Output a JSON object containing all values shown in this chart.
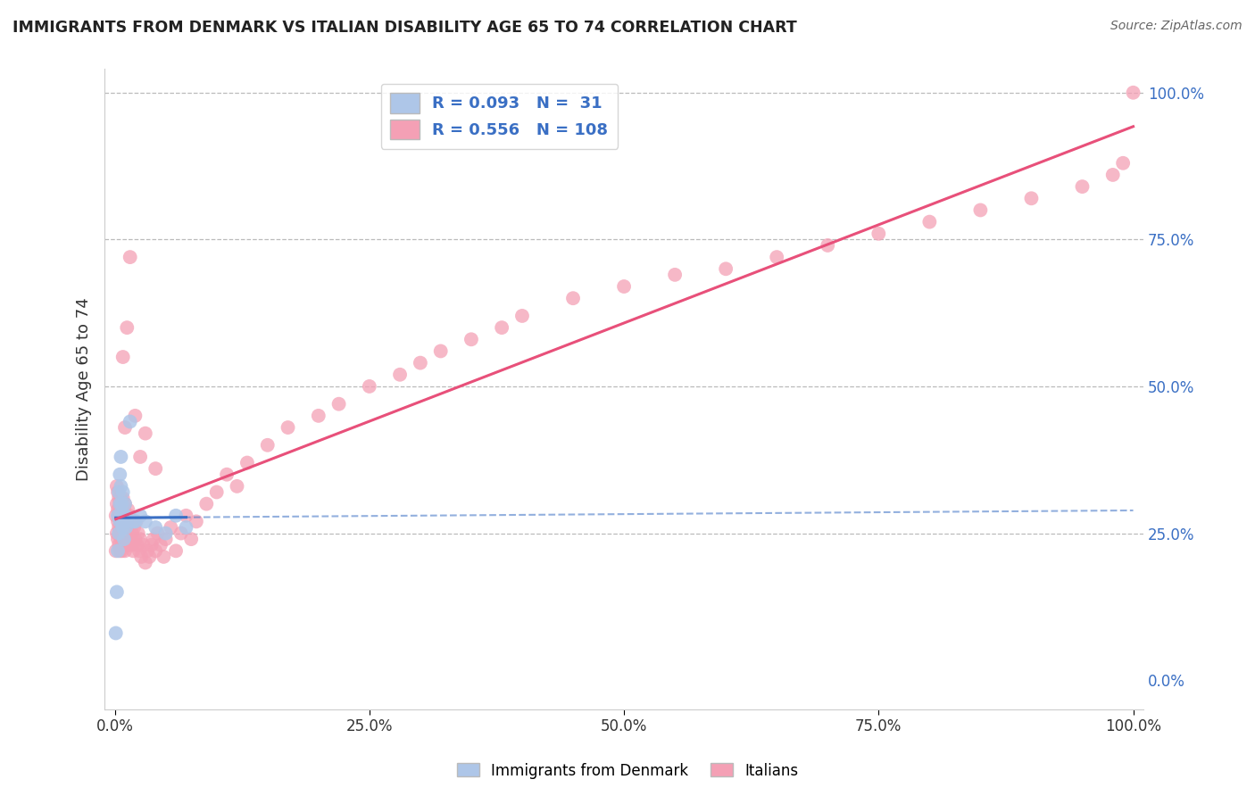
{
  "title": "IMMIGRANTS FROM DENMARK VS ITALIAN DISABILITY AGE 65 TO 74 CORRELATION CHART",
  "source": "Source: ZipAtlas.com",
  "xlabel_bottom": "Immigrants from Denmark",
  "xlabel_italians": "Italians",
  "ylabel": "Disability Age 65 to 74",
  "r_denmark": 0.093,
  "n_denmark": 31,
  "r_italians": 0.556,
  "n_italians": 108,
  "color_denmark": "#aec6e8",
  "color_italians": "#f4a0b5",
  "line_color_denmark": "#3a6fc4",
  "line_color_italians": "#e8507a",
  "dashed_line_color": "#aaaaaa",
  "background_color": "#ffffff",
  "xlim": [
    0.0,
    1.0
  ],
  "ylim": [
    0.0,
    1.0
  ],
  "denmark_x": [
    0.001,
    0.002,
    0.003,
    0.003,
    0.004,
    0.004,
    0.005,
    0.005,
    0.005,
    0.006,
    0.006,
    0.006,
    0.007,
    0.007,
    0.008,
    0.008,
    0.009,
    0.009,
    0.01,
    0.01,
    0.011,
    0.012,
    0.015,
    0.018,
    0.02,
    0.025,
    0.03,
    0.04,
    0.05,
    0.06,
    0.07
  ],
  "denmark_y": [
    0.08,
    0.15,
    0.22,
    0.28,
    0.32,
    0.25,
    0.3,
    0.35,
    0.27,
    0.28,
    0.33,
    0.38,
    0.27,
    0.3,
    0.26,
    0.32,
    0.28,
    0.24,
    0.28,
    0.3,
    0.26,
    0.27,
    0.44,
    0.27,
    0.27,
    0.28,
    0.27,
    0.26,
    0.25,
    0.28,
    0.26
  ],
  "italians_x": [
    0.001,
    0.001,
    0.002,
    0.002,
    0.002,
    0.003,
    0.003,
    0.003,
    0.003,
    0.004,
    0.004,
    0.004,
    0.004,
    0.005,
    0.005,
    0.005,
    0.005,
    0.006,
    0.006,
    0.006,
    0.006,
    0.007,
    0.007,
    0.007,
    0.007,
    0.008,
    0.008,
    0.008,
    0.009,
    0.009,
    0.01,
    0.01,
    0.01,
    0.011,
    0.011,
    0.012,
    0.012,
    0.013,
    0.013,
    0.014,
    0.015,
    0.015,
    0.016,
    0.017,
    0.018,
    0.019,
    0.02,
    0.021,
    0.022,
    0.023,
    0.024,
    0.025,
    0.026,
    0.028,
    0.03,
    0.032,
    0.034,
    0.036,
    0.038,
    0.04,
    0.042,
    0.045,
    0.048,
    0.05,
    0.055,
    0.06,
    0.065,
    0.07,
    0.075,
    0.08,
    0.09,
    0.1,
    0.11,
    0.12,
    0.13,
    0.15,
    0.17,
    0.2,
    0.22,
    0.25,
    0.28,
    0.3,
    0.32,
    0.35,
    0.38,
    0.4,
    0.45,
    0.5,
    0.55,
    0.6,
    0.65,
    0.7,
    0.75,
    0.8,
    0.85,
    0.9,
    0.95,
    0.98,
    0.99,
    1.0,
    0.008,
    0.01,
    0.012,
    0.015,
    0.02,
    0.025,
    0.03,
    0.04
  ],
  "italians_y": [
    0.28,
    0.22,
    0.3,
    0.25,
    0.33,
    0.27,
    0.32,
    0.24,
    0.29,
    0.26,
    0.31,
    0.23,
    0.28,
    0.25,
    0.3,
    0.22,
    0.28,
    0.26,
    0.31,
    0.24,
    0.29,
    0.27,
    0.22,
    0.3,
    0.25,
    0.28,
    0.23,
    0.31,
    0.26,
    0.29,
    0.25,
    0.3,
    0.22,
    0.28,
    0.25,
    0.27,
    0.23,
    0.29,
    0.26,
    0.28,
    0.24,
    0.27,
    0.23,
    0.25,
    0.22,
    0.26,
    0.24,
    0.27,
    0.23,
    0.25,
    0.22,
    0.24,
    0.21,
    0.23,
    0.2,
    0.22,
    0.21,
    0.23,
    0.24,
    0.22,
    0.25,
    0.23,
    0.21,
    0.24,
    0.26,
    0.22,
    0.25,
    0.28,
    0.24,
    0.27,
    0.3,
    0.32,
    0.35,
    0.33,
    0.37,
    0.4,
    0.43,
    0.45,
    0.47,
    0.5,
    0.52,
    0.54,
    0.56,
    0.58,
    0.6,
    0.62,
    0.65,
    0.67,
    0.69,
    0.7,
    0.72,
    0.74,
    0.76,
    0.78,
    0.8,
    0.82,
    0.84,
    0.86,
    0.88,
    1.0,
    0.55,
    0.43,
    0.6,
    0.72,
    0.45,
    0.38,
    0.42,
    0.36
  ],
  "dashed_levels": [
    0.25,
    0.5,
    0.75,
    1.0
  ],
  "ytick_labels": [
    "0.0%",
    "25.0%",
    "50.0%",
    "75.0%",
    "100.0%"
  ],
  "ytick_positions": [
    0.0,
    0.25,
    0.5,
    0.75,
    1.0
  ],
  "xtick_labels": [
    "0.0%",
    "25.0%",
    "50.0%",
    "75.0%",
    "100.0%"
  ],
  "xtick_positions": [
    0.0,
    0.25,
    0.5,
    0.75,
    1.0
  ]
}
